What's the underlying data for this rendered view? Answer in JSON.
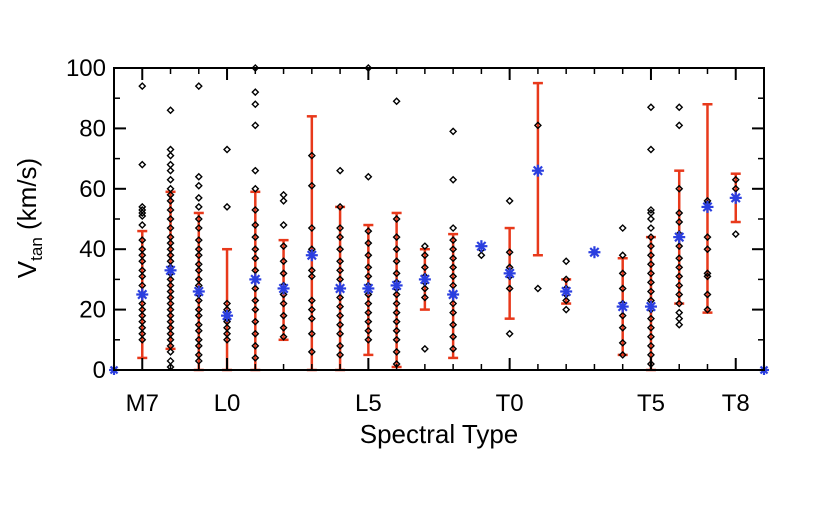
{
  "chart_data": {
    "type": "scatter",
    "xlabel": "Spectral Type",
    "ylabel_main": "V",
    "ylabel_sub": "tan",
    "ylabel_unit": " (km/s)",
    "ylim": [
      0,
      100
    ],
    "xlim": [
      6,
      29
    ],
    "yticks": [
      0,
      20,
      40,
      60,
      80,
      100
    ],
    "xticks": [
      {
        "value": 7,
        "label": "M7"
      },
      {
        "value": 10,
        "label": "L0"
      },
      {
        "value": 15,
        "label": "L5"
      },
      {
        "value": 20,
        "label": "T0"
      },
      {
        "value": 25,
        "label": "T5"
      },
      {
        "value": 28,
        "label": "T8"
      }
    ],
    "colors": {
      "points": "#000000",
      "means": "#2b3fe0",
      "errorbars": "#e8391b",
      "axes": "#000000"
    },
    "objects": [
      {
        "x": 7,
        "points": [
          94,
          68,
          54,
          53,
          52,
          51,
          48,
          43,
          40,
          38,
          36,
          33,
          31,
          28,
          25,
          22,
          20,
          18,
          16,
          14,
          12,
          10
        ],
        "mean": 25,
        "err": [
          4,
          46
        ]
      },
      {
        "x": 8,
        "points": [
          86,
          73,
          71,
          68,
          66,
          63,
          60,
          58,
          56,
          53,
          50,
          47,
          44,
          42,
          40,
          38,
          36,
          34,
          32,
          30,
          28,
          26,
          24,
          22,
          20,
          18,
          16,
          14,
          12,
          10,
          8,
          6,
          3,
          1
        ],
        "mean": 33,
        "err": [
          7,
          59
        ]
      },
      {
        "x": 9,
        "points": [
          94,
          64,
          61,
          57,
          54,
          50,
          47,
          43,
          40,
          38,
          35,
          33,
          30,
          28,
          25,
          23,
          20,
          18,
          15,
          13,
          10,
          8,
          5,
          3
        ],
        "mean": 26,
        "err": [
          0,
          52
        ]
      },
      {
        "x": 10,
        "points": [
          73,
          54,
          22,
          20,
          18,
          17,
          16,
          14,
          12,
          10
        ],
        "mean": 18,
        "err": [
          0,
          40
        ]
      },
      {
        "x": 11,
        "points": [
          100,
          92,
          88,
          81,
          66,
          60,
          53,
          48,
          44,
          40,
          37,
          33,
          30,
          27,
          23,
          20,
          16,
          12,
          8,
          4
        ],
        "mean": 30,
        "err": [
          0,
          59
        ]
      },
      {
        "x": 12,
        "points": [
          58,
          56,
          48,
          41,
          36,
          32,
          28,
          25,
          22,
          18,
          14,
          11
        ],
        "mean": 27,
        "err": [
          10,
          43
        ]
      },
      {
        "x": 13,
        "points": [
          71,
          61,
          47,
          40,
          33,
          31,
          23,
          20,
          17,
          12,
          6
        ],
        "mean": 38,
        "err": [
          0,
          84
        ]
      },
      {
        "x": 14,
        "points": [
          66,
          54,
          47,
          44,
          40,
          36,
          33,
          30,
          27,
          24,
          21,
          18,
          15,
          12,
          8,
          5
        ],
        "mean": 27,
        "err": [
          0,
          54
        ]
      },
      {
        "x": 15,
        "points": [
          100,
          64,
          46,
          42,
          38,
          34,
          31,
          28,
          25,
          22,
          19,
          16,
          13,
          10
        ],
        "mean": 27,
        "err": [
          5,
          48
        ]
      },
      {
        "x": 16,
        "points": [
          89,
          50,
          44,
          40,
          36,
          32,
          29,
          27,
          25,
          22,
          19,
          16,
          13,
          10,
          6,
          2
        ],
        "mean": 28,
        "err": [
          1,
          52
        ]
      },
      {
        "x": 17,
        "points": [
          41,
          38,
          34,
          31,
          29,
          27,
          24,
          7
        ],
        "mean": 30,
        "err": [
          20,
          40
        ]
      },
      {
        "x": 18,
        "points": [
          79,
          63,
          47,
          43,
          40,
          37,
          34,
          31,
          28,
          25,
          22,
          19,
          15,
          11,
          7
        ],
        "mean": 25,
        "err": [
          4,
          45
        ]
      },
      {
        "x": 19,
        "points": [
          40,
          38
        ],
        "mean": 41,
        "err": [
          null,
          null
        ]
      },
      {
        "x": 20,
        "points": [
          56,
          39,
          34,
          31,
          27,
          12
        ],
        "mean": 32,
        "err": [
          17,
          47
        ]
      },
      {
        "x": 21,
        "points": [
          81,
          27
        ],
        "mean": 66,
        "err": [
          38,
          95
        ]
      },
      {
        "x": 22,
        "points": [
          36,
          30,
          27,
          25,
          23,
          20
        ],
        "mean": 26,
        "err": [
          22,
          30
        ]
      },
      {
        "x": 23,
        "points": [
          39
        ],
        "mean": 39,
        "err": [
          null,
          null
        ]
      },
      {
        "x": 24,
        "points": [
          47,
          38,
          32,
          27,
          22,
          18,
          14,
          9,
          5
        ],
        "mean": 21,
        "err": [
          5,
          37
        ]
      },
      {
        "x": 25,
        "points": [
          87,
          73,
          53,
          52,
          50,
          47,
          44,
          41,
          38,
          35,
          32,
          29,
          26,
          23,
          20,
          17,
          14,
          11,
          8,
          5,
          2
        ],
        "mean": 21,
        "err": [
          0,
          44
        ]
      },
      {
        "x": 26,
        "points": [
          87,
          81,
          60,
          52,
          49,
          45,
          41,
          37,
          34,
          31,
          28,
          25,
          22,
          19,
          17,
          15
        ],
        "mean": 44,
        "err": [
          22,
          66
        ]
      },
      {
        "x": 27,
        "points": [
          56,
          55,
          44,
          40,
          32,
          31,
          25,
          20
        ],
        "mean": 54,
        "err": [
          19,
          88
        ]
      },
      {
        "x": 28,
        "points": [
          63,
          60,
          45
        ],
        "mean": 57,
        "err": [
          49,
          65
        ]
      }
    ],
    "edge_markers": [
      {
        "x": 6,
        "y": 0
      },
      {
        "x": 29,
        "y": 0
      }
    ]
  }
}
